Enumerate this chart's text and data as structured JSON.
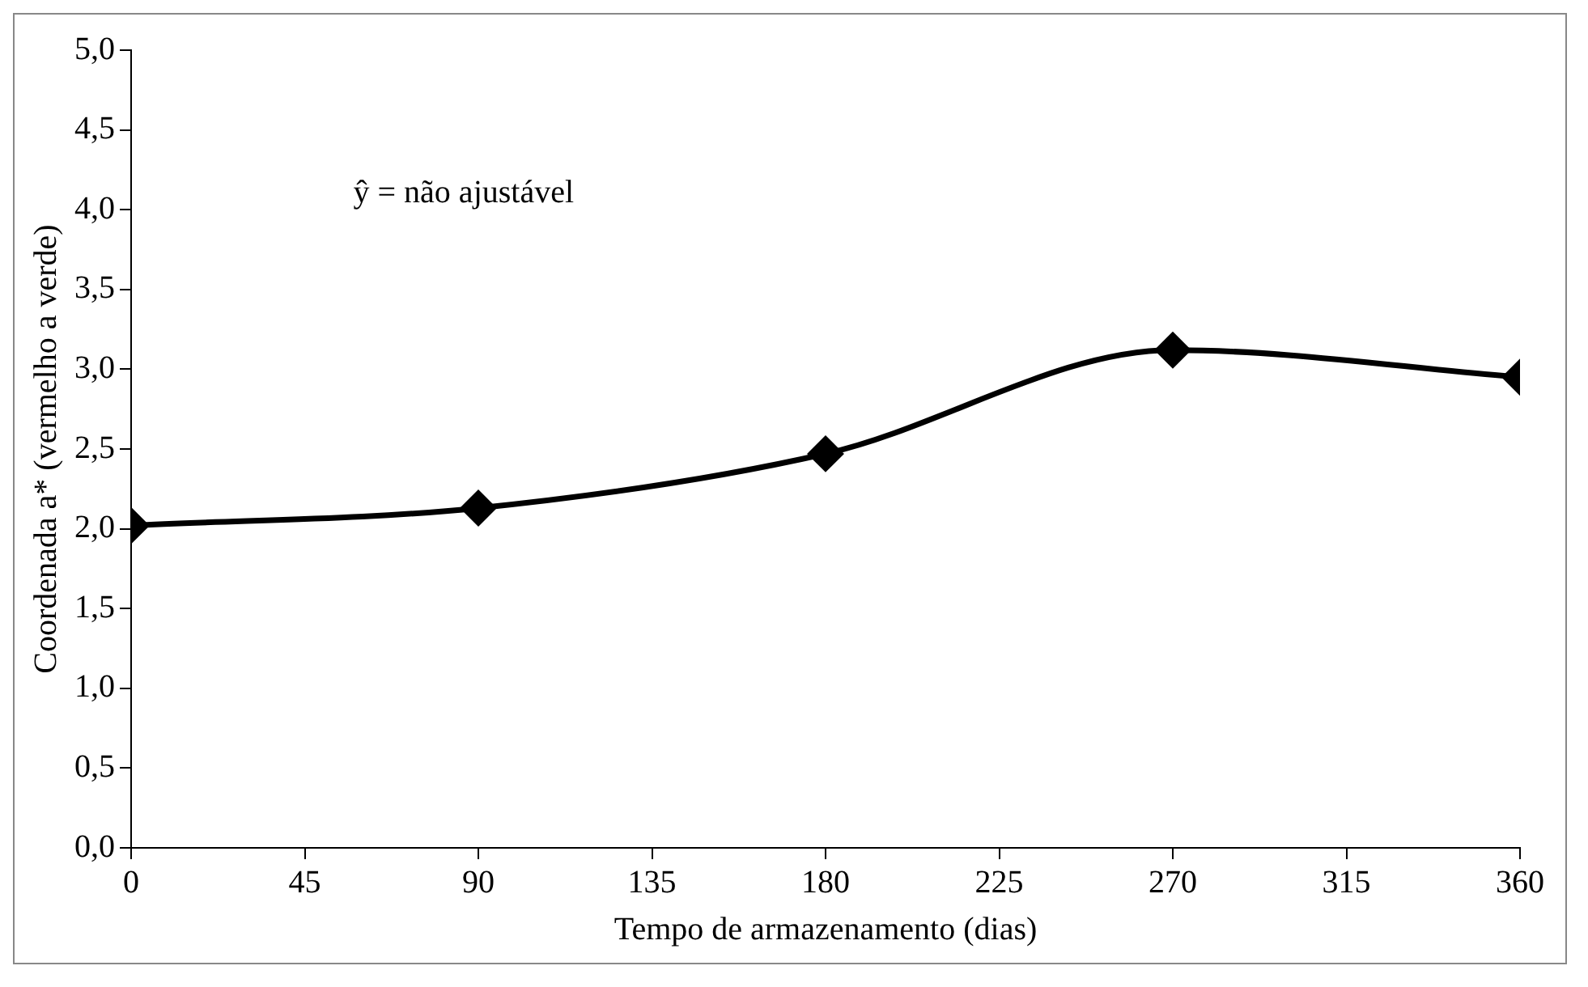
{
  "chart_data": {
    "type": "line",
    "xlabel": "Tempo de armazenamento (dias)",
    "ylabel": "Coordenada a* (vermelho a verde)",
    "annotations": [
      "ŷ = não ajustável"
    ],
    "x": [
      0,
      90,
      180,
      270,
      360
    ],
    "series": [
      {
        "color": "#000000",
        "values": [
          2.02,
          2.13,
          2.47,
          3.12,
          2.95
        ]
      }
    ],
    "xlim": [
      0,
      360
    ],
    "xticks": [
      0,
      45,
      90,
      135,
      180,
      225,
      270,
      315,
      360
    ],
    "ylim": [
      0,
      5
    ],
    "yticks": [
      {
        "value": 0,
        "label": "0,0"
      },
      {
        "value": 0.5,
        "label": "0,5"
      },
      {
        "value": 1,
        "label": "1,0"
      },
      {
        "value": 1.5,
        "label": "1,5"
      },
      {
        "value": 2,
        "label": "2,0"
      },
      {
        "value": 2.5,
        "label": "2,5"
      },
      {
        "value": 3,
        "label": "3,0"
      },
      {
        "value": 3.5,
        "label": "3,5"
      },
      {
        "value": 4,
        "label": "4,0"
      },
      {
        "value": 4.5,
        "label": "4,5"
      },
      {
        "value": 5,
        "label": "5,0"
      }
    ],
    "grid": false,
    "legend": false,
    "marker": "diamond",
    "line_style": "solid"
  }
}
